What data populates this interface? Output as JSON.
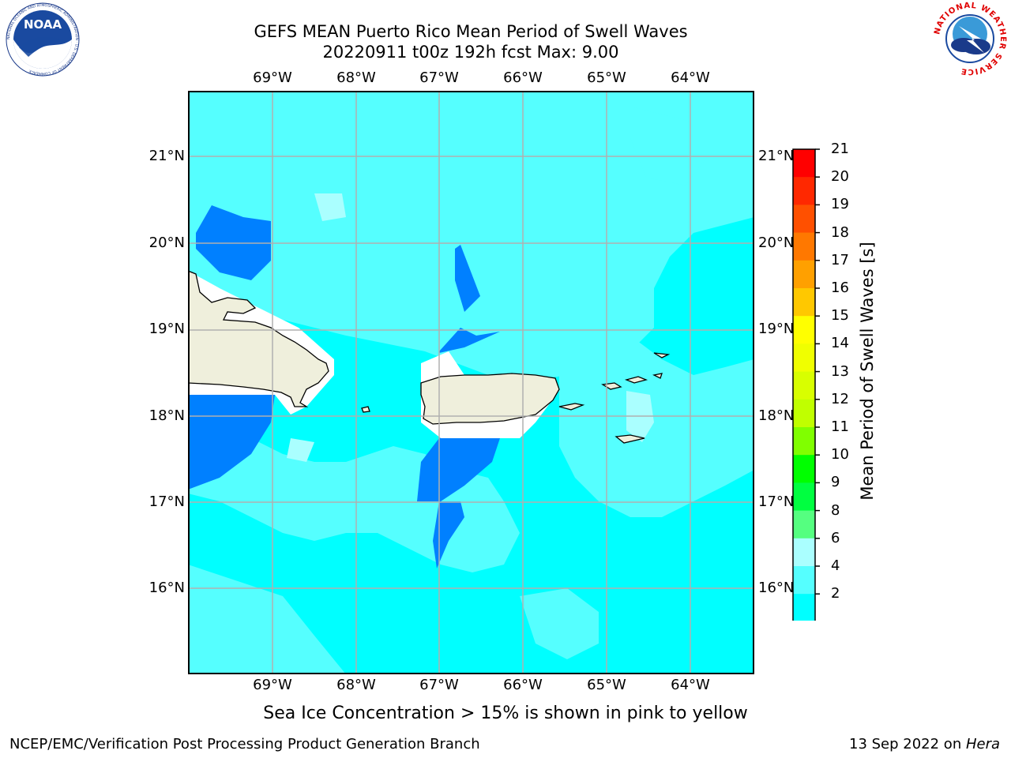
{
  "title": {
    "line1": "GEFS MEAN Puerto Rico Mean Period of Swell Waves",
    "line2": "20220911 t00z 192h fcst   Max: 9.00"
  },
  "map": {
    "lon_labels": [
      "69°W",
      "68°W",
      "67°W",
      "66°W",
      "65°W",
      "64°W"
    ],
    "lat_labels": [
      "21°N",
      "20°N",
      "19°N",
      "18°N",
      "17°N",
      "16°N"
    ],
    "colors": {
      "ocean_4_6": "#00ffff",
      "ocean_6_8": "#55ffff",
      "ocean_8_9": "#aaffff",
      "ocean_2_4": "#0080ff",
      "land": "#efefdc",
      "gridline": "#b0b0b0"
    }
  },
  "colorbar": {
    "label": "Mean Period of Swell Waves [s]",
    "ticks": [
      "21",
      "20",
      "19",
      "18",
      "17",
      "16",
      "15",
      "14",
      "13",
      "12",
      "11",
      "10",
      "9",
      "8",
      "6",
      "4",
      "2"
    ],
    "colors": [
      "#ff0000",
      "#ff2800",
      "#ff5000",
      "#ff7800",
      "#ffa000",
      "#ffc800",
      "#ffff00",
      "#f0ff00",
      "#d8ff00",
      "#c0ff00",
      "#80ff00",
      "#00ff00",
      "#00ff40",
      "#55ff80",
      "#aaffff",
      "#55ffff",
      "#00ffff",
      "#0080ff"
    ],
    "extend_color": "#0000ff"
  },
  "logos": {
    "noaa_text": "NOAA",
    "noaa_ring": "NATIONAL OCEANIC AND ATMOSPHERIC ADMINISTRATION · U.S. DEPARTMENT OF COMMERCE",
    "nws_ring": "NATIONAL WEATHER SERVICE"
  },
  "subtitle": "Sea Ice Concentration > 15% is shown in pink to yellow",
  "footer": {
    "left": "NCEP/EMC/Verification Post Processing Product Generation Branch",
    "right_date": "13 Sep 2022 on ",
    "right_host": "Hera"
  }
}
